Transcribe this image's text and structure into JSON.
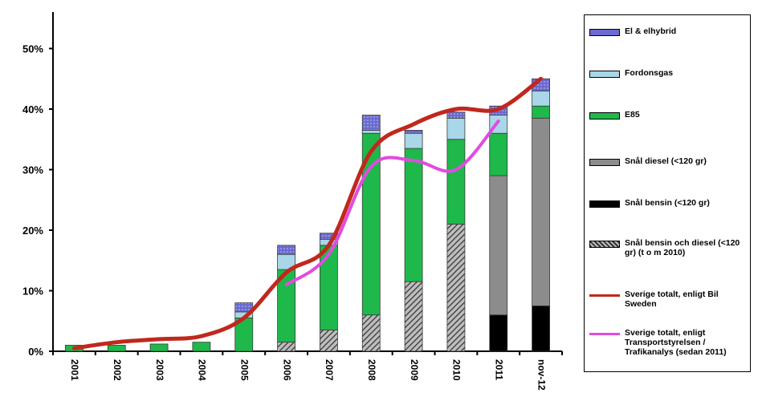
{
  "chart_data": {
    "type": "bar",
    "stacked": true,
    "categories": [
      "2001",
      "2002",
      "2003",
      "2004",
      "2005",
      "2006",
      "2007",
      "2008",
      "2009",
      "2010",
      "2011",
      "nov-12"
    ],
    "ylim": [
      0,
      55
    ],
    "yticks": [
      0,
      10,
      20,
      30,
      40,
      50
    ],
    "ytick_labels": [
      "0%",
      "10%",
      "20%",
      "30%",
      "40%",
      "50%"
    ],
    "grid": false,
    "legend_position": "right",
    "series": [
      {
        "name": "Snål bensin (<120 gr)",
        "color": "#000000",
        "pattern": "solid",
        "values": [
          0,
          0,
          0,
          0,
          0,
          0,
          0,
          0,
          0,
          0,
          6,
          7.5
        ]
      },
      {
        "name": "Snål bensin och diesel (<120 gr) (t o m 2010)",
        "color": "#555555",
        "pattern": "hatch",
        "values": [
          0,
          0,
          0,
          0,
          0,
          1.5,
          3.5,
          6,
          11.5,
          21,
          0,
          0
        ]
      },
      {
        "name": "Snål diesel (<120 gr)",
        "color": "#8c8c8c",
        "pattern": "solid",
        "values": [
          0,
          0,
          0,
          0,
          0,
          0,
          0,
          0,
          0,
          0,
          23,
          31
        ]
      },
      {
        "name": "E85",
        "color": "#1fb84a",
        "pattern": "solid",
        "values": [
          1,
          1,
          1.2,
          1.5,
          5.5,
          12,
          14,
          30,
          22,
          14,
          7,
          2
        ]
      },
      {
        "name": "Fordonsgas",
        "color": "#a9d6e8",
        "pattern": "solid",
        "values": [
          0,
          0,
          0,
          0,
          1,
          2.5,
          1,
          0.5,
          2.5,
          3.5,
          3,
          2.5
        ]
      },
      {
        "name": "El & elhybrid",
        "color": "#6a6ad0",
        "pattern": "dotted",
        "values": [
          0,
          0,
          0,
          0,
          1.5,
          1.5,
          1,
          2.5,
          0.5,
          1,
          1.5,
          2
        ]
      }
    ],
    "lines": [
      {
        "name": "Sverige totalt, enligt Bil Sweden",
        "color": "#c0281e",
        "width": 5,
        "values": [
          0.5,
          1.5,
          2,
          2.5,
          5.5,
          13,
          17.5,
          33,
          37.5,
          40,
          40,
          45
        ]
      },
      {
        "name": "Sverige totalt, enligt Transportstyrelsen / Trafikanalys (sedan 2011)",
        "color": "#e14be1",
        "width": 4,
        "values": [
          null,
          null,
          null,
          null,
          null,
          11,
          16,
          30.5,
          31.5,
          30,
          38,
          null
        ]
      }
    ]
  },
  "legend": {
    "items": [
      {
        "label": "El & elhybrid",
        "color": "#6a6ad0",
        "kind": "box"
      },
      {
        "label": "Fordonsgas",
        "color": "#a9d6e8",
        "kind": "box"
      },
      {
        "label": "E85",
        "color": "#1fb84a",
        "kind": "box"
      },
      {
        "label": "Snål diesel (<120 gr)",
        "color": "#8c8c8c",
        "kind": "box"
      },
      {
        "label": "Snål bensin (<120 gr)",
        "color": "#000000",
        "kind": "box"
      },
      {
        "label": "Snål bensin och diesel (<120 gr) (t o m 2010)",
        "color": "#555555",
        "kind": "hatch"
      },
      {
        "label": "Sverige totalt, enligt Bil Sweden",
        "color": "#c0281e",
        "kind": "line"
      },
      {
        "label": "Sverige totalt, enligt Transportstyrelsen / Trafikanalys (sedan 2011)",
        "color": "#e14be1",
        "kind": "line"
      }
    ]
  }
}
